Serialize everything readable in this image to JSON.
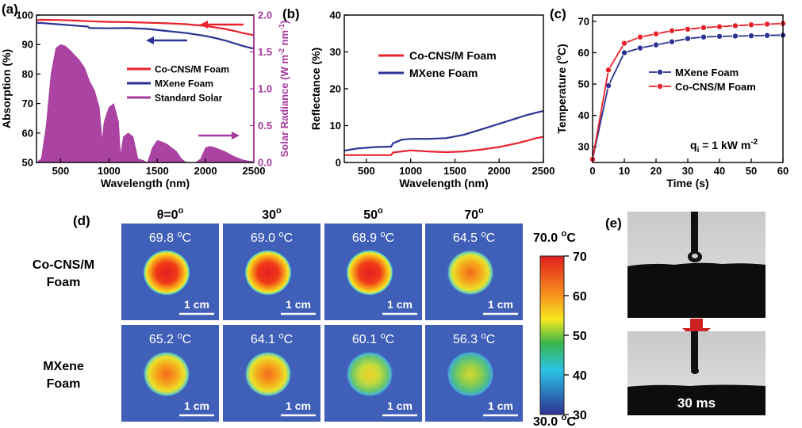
{
  "panel_a": {
    "label": "(a)",
    "chart_data": {
      "type": "line",
      "xlabel": "Wavelength (nm)",
      "ylabel": "Absorption (%)",
      "y2label": "Solar Radiance (W m",
      "y2label_sup1": "-2",
      "y2label_mid": " nm",
      "y2label_sup2": "-1",
      "y2label_end": ")",
      "xlim": [
        250,
        2500
      ],
      "ylim": [
        50,
        100
      ],
      "y2lim": [
        0,
        2.0
      ],
      "xticks": [
        500,
        1000,
        1500,
        2000,
        2500
      ],
      "yticks": [
        50,
        60,
        70,
        80,
        90,
        100
      ],
      "y2ticks": [
        "0.0",
        "0.5",
        "1.0",
        "1.5",
        "2.0"
      ],
      "legend_position": "middle-right",
      "series": [
        {
          "name": "Co-CNS/M Foam",
          "color": "#e8212b",
          "axis": "left",
          "x": [
            250,
            300,
            500,
            700,
            800,
            900,
            1000,
            1200,
            1400,
            1600,
            1800,
            2000,
            2200,
            2300,
            2400,
            2500
          ],
          "y": [
            98.2,
            98.4,
            98.3,
            98.1,
            97.9,
            97.8,
            97.7,
            97.6,
            97.4,
            97.2,
            96.9,
            96.3,
            95.3,
            94.6,
            93.8,
            93.2
          ]
        },
        {
          "name": "MXene Foam",
          "color": "#2b3394",
          "axis": "left",
          "x": [
            250,
            300,
            500,
            700,
            780,
            800,
            1000,
            1200,
            1400,
            1600,
            1800,
            2000,
            2100,
            2200,
            2300,
            2400,
            2500
          ],
          "y": [
            97.3,
            97.3,
            96.8,
            96.3,
            96.1,
            95.6,
            95.5,
            95.6,
            95.3,
            94.6,
            93.9,
            92.9,
            92.2,
            91.4,
            90.4,
            89.4,
            88.6
          ]
        },
        {
          "name": "Standard Solar",
          "color": "#a6399d",
          "axis": "right",
          "fill": true,
          "x": [
            250,
            300,
            350,
            400,
            450,
            500,
            550,
            600,
            650,
            700,
            750,
            800,
            850,
            900,
            930,
            950,
            1000,
            1050,
            1100,
            1120,
            1150,
            1200,
            1250,
            1300,
            1350,
            1400,
            1450,
            1500,
            1550,
            1600,
            1650,
            1700,
            1750,
            1800,
            1900,
            1950,
            2000,
            2050,
            2100,
            2200,
            2300,
            2400,
            2500
          ],
          "y": [
            0,
            0.05,
            0.5,
            1.2,
            1.55,
            1.6,
            1.58,
            1.52,
            1.45,
            1.38,
            1.28,
            1.1,
            0.98,
            0.75,
            0.3,
            0.55,
            0.75,
            0.8,
            0.55,
            0.1,
            0.35,
            0.4,
            0.35,
            0.05,
            0.03,
            0.0,
            0.2,
            0.3,
            0.28,
            0.25,
            0.2,
            0.15,
            0.05,
            0.0,
            0.0,
            0.05,
            0.2,
            0.22,
            0.2,
            0.15,
            0.08,
            0.03,
            0.01
          ]
        }
      ]
    }
  },
  "panel_b": {
    "label": "(b)",
    "chart_data": {
      "type": "line",
      "xlabel": "Wavelength (nm)",
      "ylabel": "Reflectance (%)",
      "xlim": [
        250,
        2500
      ],
      "ylim": [
        0,
        40
      ],
      "xticks": [
        500,
        1000,
        1500,
        2000,
        2500
      ],
      "yticks": [
        0,
        10,
        20,
        30,
        40
      ],
      "legend_position": "upper-middle",
      "series": [
        {
          "name": "Co-CNS/M Foam",
          "color": "#e8212b",
          "x": [
            250,
            500,
            780,
            800,
            1000,
            1200,
            1400,
            1600,
            1800,
            2000,
            2200,
            2300,
            2400,
            2500
          ],
          "y": [
            2.0,
            2.0,
            2.0,
            2.7,
            3.3,
            3.0,
            2.8,
            3.0,
            3.5,
            4.2,
            5.2,
            5.8,
            6.5,
            7.0
          ]
        },
        {
          "name": "MXene Foam",
          "color": "#2b3394",
          "x": [
            250,
            400,
            600,
            780,
            800,
            900,
            1000,
            1200,
            1400,
            1600,
            1800,
            2000,
            2200,
            2300,
            2400,
            2500
          ],
          "y": [
            3.2,
            3.8,
            4.2,
            4.3,
            5.2,
            6.2,
            6.4,
            6.4,
            6.6,
            7.5,
            9.0,
            10.5,
            12.0,
            12.8,
            13.4,
            14.0
          ]
        }
      ]
    }
  },
  "panel_c": {
    "label": "(c)",
    "annotation": "q",
    "annotation_sub": "i",
    "annotation_rest": " = 1 kW m",
    "annotation_sup": "-2",
    "chart_data": {
      "type": "line",
      "xlabel": "Time (s)",
      "ylabel": "Temperature (",
      "ylabel_sup": "o",
      "ylabel_end": "C)",
      "xlim": [
        0,
        60
      ],
      "ylim": [
        25,
        72
      ],
      "xticks": [
        0,
        10,
        20,
        30,
        40,
        50,
        60
      ],
      "yticks": [
        30,
        40,
        50,
        60,
        70
      ],
      "legend_position": "upper-right",
      "series": [
        {
          "name": "MXene Foam",
          "color": "#2b3394",
          "x": [
            0,
            5,
            10,
            15,
            20,
            25,
            30,
            35,
            40,
            45,
            50,
            55,
            60
          ],
          "y": [
            26.0,
            49.5,
            60.0,
            61.5,
            62.5,
            63.5,
            64.5,
            65.0,
            65.2,
            65.3,
            65.4,
            65.5,
            65.6
          ]
        },
        {
          "name": "Co-CNS/M Foam",
          "color": "#e8212b",
          "x": [
            0,
            5,
            10,
            15,
            20,
            25,
            30,
            35,
            40,
            45,
            50,
            55,
            60
          ],
          "y": [
            26.0,
            54.5,
            63.0,
            65.0,
            66.0,
            67.0,
            67.5,
            68.0,
            68.3,
            68.6,
            68.9,
            69.1,
            69.3
          ]
        }
      ]
    }
  },
  "panel_d": {
    "label": "(d)",
    "angles": [
      "θ=0",
      "30",
      "50",
      "70"
    ],
    "angle_unit": "o",
    "rows": [
      {
        "label1": "Co-CNS/M",
        "label2": "Foam",
        "temps": [
          "69.8",
          "69.0",
          "68.9",
          "64.5"
        ],
        "core": [
          70,
          70,
          70,
          64
        ]
      },
      {
        "label1": "MXene",
        "label2": "Foam",
        "temps": [
          "65.2",
          "64.1",
          "60.1",
          "56.3"
        ],
        "core": [
          65,
          63,
          58,
          55
        ]
      }
    ],
    "temp_unit_sup": "o",
    "temp_unit": "C",
    "scale_bar": "1 cm",
    "colorbar": {
      "max_label": "70.0 ",
      "min_label": "30.0 ",
      "unit_sup": "o",
      "unit": "C",
      "ticks": [
        "70",
        "60",
        "50",
        "40",
        "30"
      ]
    }
  },
  "panel_e": {
    "label": "(e)",
    "time_label": "30 ms"
  }
}
